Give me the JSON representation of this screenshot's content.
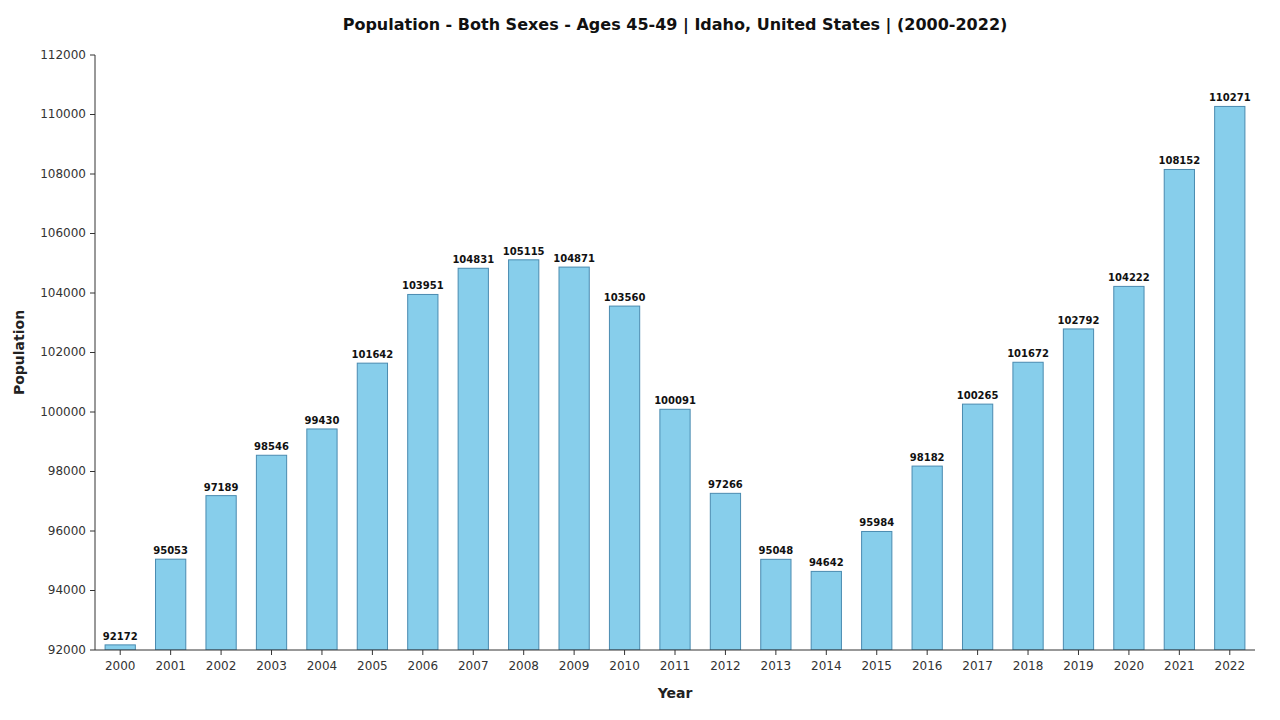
{
  "chart_data": {
    "type": "bar",
    "title": "Population - Both Sexes - Ages 45-49 | Idaho, United States |  (2000-2022)",
    "xlabel": "Year",
    "ylabel": "Population",
    "categories": [
      "2000",
      "2001",
      "2002",
      "2003",
      "2004",
      "2005",
      "2006",
      "2007",
      "2008",
      "2009",
      "2010",
      "2011",
      "2012",
      "2013",
      "2014",
      "2015",
      "2016",
      "2017",
      "2018",
      "2019",
      "2020",
      "2021",
      "2022"
    ],
    "values": [
      92172,
      95053,
      97189,
      98546,
      99430,
      101642,
      103951,
      104831,
      105115,
      104871,
      103560,
      100091,
      97266,
      95048,
      94642,
      95984,
      98182,
      100265,
      101672,
      102792,
      104222,
      108152,
      110271
    ],
    "color": "#87CEEB",
    "ylim": [
      92000,
      112000
    ],
    "yticks": [
      92000,
      94000,
      96000,
      98000,
      100000,
      102000,
      104000,
      106000,
      108000,
      110000,
      112000
    ],
    "grid": false,
    "data_labels": true
  }
}
